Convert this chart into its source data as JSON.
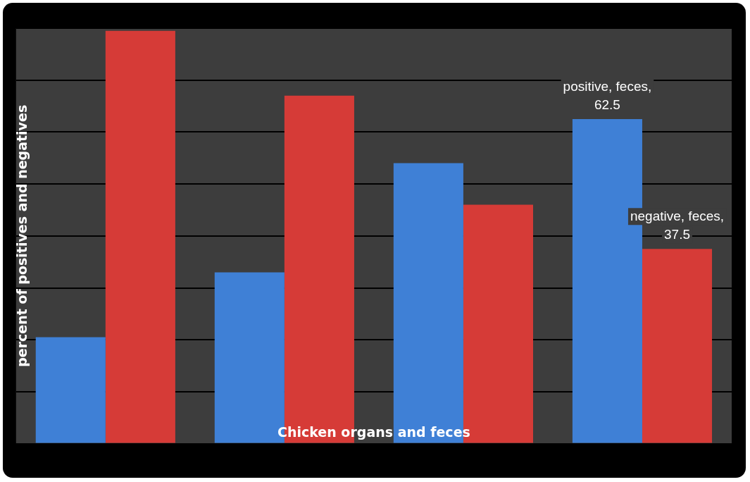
{
  "chart_data": {
    "type": "bar",
    "xlabel": "Chicken organs and feces",
    "ylabel": "percent of positives and negatives",
    "categories": [
      null,
      null,
      null,
      null
    ],
    "series": [
      {
        "color": "#3f80d6",
        "values": [
          20.5,
          33,
          54,
          62.5
        ],
        "value_labels": [
          null,
          null,
          null,
          "positive, feces, 62.5"
        ]
      },
      {
        "color": "#d63b37",
        "values": [
          79.5,
          67,
          46,
          37.5
        ],
        "value_labels": [
          null,
          null,
          null,
          "negative, feces, 37.5"
        ]
      }
    ],
    "ylim": [
      0,
      80
    ],
    "yticks": [
      {
        "value": 0,
        "label": null
      },
      {
        "value": 10,
        "label": null
      },
      {
        "value": 20,
        "label": null
      },
      {
        "value": 30,
        "label": null
      },
      {
        "value": 40,
        "label": null
      },
      {
        "value": 50,
        "label": null
      },
      {
        "value": 60,
        "label": null
      },
      {
        "value": 70,
        "label": null
      },
      {
        "value": 80,
        "label": null
      }
    ],
    "grid": "y",
    "legend": false
  }
}
